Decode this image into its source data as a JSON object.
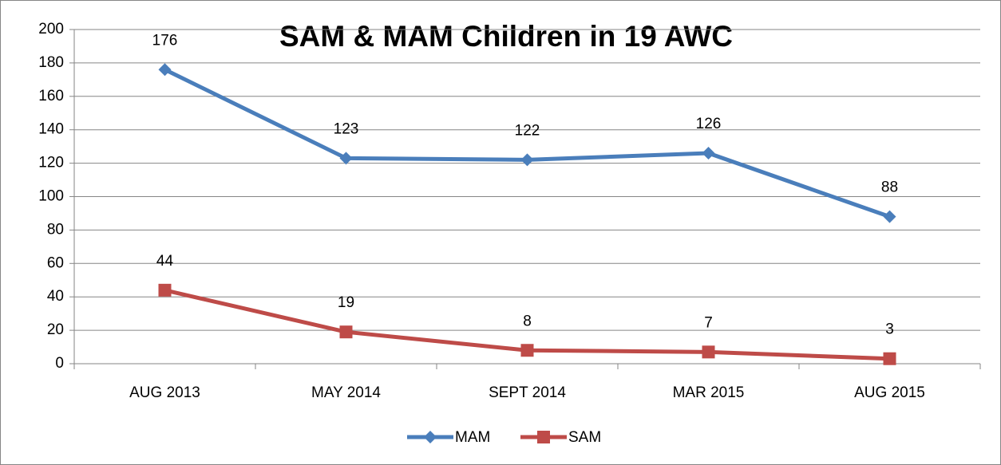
{
  "chart_data": {
    "type": "line",
    "title": "SAM & MAM Children in 19 AWC",
    "categories": [
      "AUG 2013",
      "MAY 2014",
      "SEPT 2014",
      "MAR 2015",
      "AUG 2015"
    ],
    "series": [
      {
        "name": "MAM",
        "color": "#4a7ebb",
        "marker": "diamond",
        "values": [
          176,
          123,
          122,
          126,
          88
        ]
      },
      {
        "name": "SAM",
        "color": "#be4b48",
        "marker": "square",
        "values": [
          44,
          19,
          8,
          7,
          3
        ]
      }
    ],
    "ylim": [
      0,
      200
    ],
    "yticks": [
      0,
      20,
      40,
      60,
      80,
      100,
      120,
      140,
      160,
      180,
      200
    ],
    "grid": true,
    "legend": "bottom"
  }
}
